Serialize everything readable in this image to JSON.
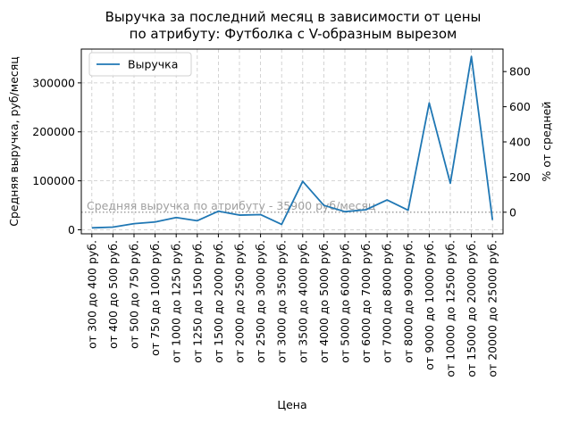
{
  "chart_data": {
    "type": "line",
    "title": "Выручка за последний месяц в зависимости от цены\nпо атрибуту: Футболка с V-образным вырезом",
    "xlabel": "Цена",
    "ylabel": "Средняя выручка, руб/месяц",
    "ylabel_right": "% от средней",
    "categories": [
      "от 300 до 400 руб.",
      "от 400 до 500 руб.",
      "от 500 до 750 руб.",
      "от 750 до 1000 руб.",
      "от 1000 до 1250 руб.",
      "от 1250 до 1500 руб.",
      "от 1500 до 2000 руб.",
      "от 2000 до 2500 руб.",
      "от 2500 до 3000 руб.",
      "от 3000 до 3500 руб.",
      "от 3500 до 4000 руб.",
      "от 4000 до 5000 руб.",
      "от 5000 до 6000 руб.",
      "от 6000 до 7000 руб.",
      "от 7000 до 8000 руб.",
      "от 8000 до 9000 руб.",
      "от 9000 до 10000 руб.",
      "от 10000 до 12500 руб.",
      "от 15000 до 20000 руб.",
      "от 20000 до 25000 руб."
    ],
    "series": [
      {
        "name": "Выручка",
        "color": "#1f77b4",
        "values": [
          4000,
          5500,
          12500,
          16000,
          25000,
          18500,
          38000,
          30000,
          31000,
          11000,
          99000,
          50000,
          37000,
          41000,
          61000,
          40000,
          259000,
          95000,
          354000,
          20000
        ]
      }
    ],
    "reference_line": {
      "value": 35900,
      "label": "Средняя выручка по атрибуту - 35900 руб/месяц",
      "color": "#a0a0a0"
    },
    "ylim": [
      -8200,
      369000
    ],
    "yticks": [
      0,
      100000,
      200000,
      300000
    ],
    "ylim_right": [
      -122.8,
      927.9
    ],
    "yticks_right": [
      0,
      200,
      400,
      600,
      800
    ],
    "grid": true,
    "legend_position": "top-left"
  }
}
